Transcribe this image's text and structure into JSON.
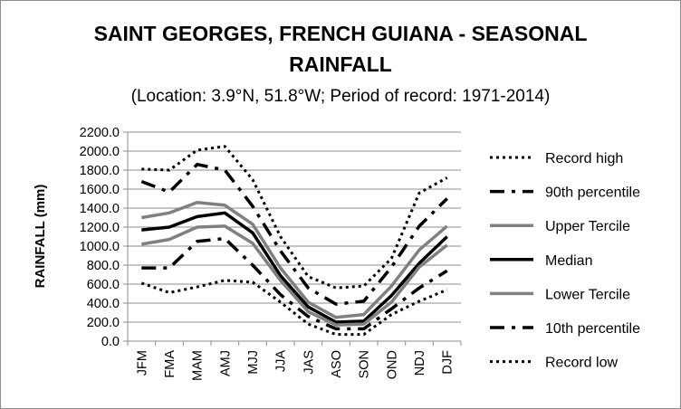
{
  "chart_data": {
    "type": "line",
    "title_lines": [
      "SAINT GEORGES, FRENCH GUIANA - SEASONAL",
      "RAINFALL"
    ],
    "subtitle": "(Location: 3.9°N, 51.8°W; Period of record: 1971-2014)",
    "xlabel": "",
    "ylabel": "RAINFALL (mm)",
    "ylim": [
      0,
      2200
    ],
    "y_ticks": [
      "0.0",
      "200.0",
      "400.0",
      "600.0",
      "800.0",
      "1000.0",
      "1200.0",
      "1400.0",
      "1600.0",
      "1800.0",
      "2000.0",
      "2200.0"
    ],
    "categories": [
      "JFM",
      "FMA",
      "MAM",
      "AMJ",
      "MJJ",
      "JJA",
      "JAS",
      "ASO",
      "SON",
      "OND",
      "NDJ",
      "DJF"
    ],
    "legend_position": "right",
    "grid": "horizontal",
    "series": [
      {
        "name": "Record high",
        "style": "dotted",
        "color": "#000000",
        "values": [
          1810,
          1800,
          2010,
          2050,
          1700,
          1100,
          680,
          560,
          580,
          870,
          1560,
          1720
        ]
      },
      {
        "name": "90th percentile",
        "style": "dashdot",
        "color": "#000000",
        "values": [
          1680,
          1570,
          1860,
          1800,
          1420,
          950,
          560,
          390,
          420,
          780,
          1210,
          1500
        ]
      },
      {
        "name": "Upper Tercile",
        "style": "solid",
        "color": "#808080",
        "values": [
          1300,
          1350,
          1460,
          1430,
          1230,
          770,
          410,
          250,
          280,
          580,
          960,
          1210
        ]
      },
      {
        "name": "Median",
        "style": "solid",
        "color": "#000000",
        "values": [
          1170,
          1200,
          1310,
          1350,
          1140,
          690,
          360,
          200,
          210,
          480,
          820,
          1100
        ]
      },
      {
        "name": "Lower Tercile",
        "style": "solid",
        "color": "#808080",
        "values": [
          1020,
          1070,
          1200,
          1210,
          1030,
          640,
          310,
          170,
          180,
          410,
          780,
          1010
        ]
      },
      {
        "name": "10th percentile",
        "style": "dashdot",
        "color": "#000000",
        "values": [
          770,
          770,
          1050,
          1080,
          800,
          490,
          260,
          130,
          130,
          340,
          560,
          740
        ]
      },
      {
        "name": "Record low",
        "style": "dotted",
        "color": "#000000",
        "values": [
          610,
          510,
          570,
          640,
          620,
          410,
          180,
          70,
          70,
          280,
          420,
          540
        ]
      }
    ]
  }
}
